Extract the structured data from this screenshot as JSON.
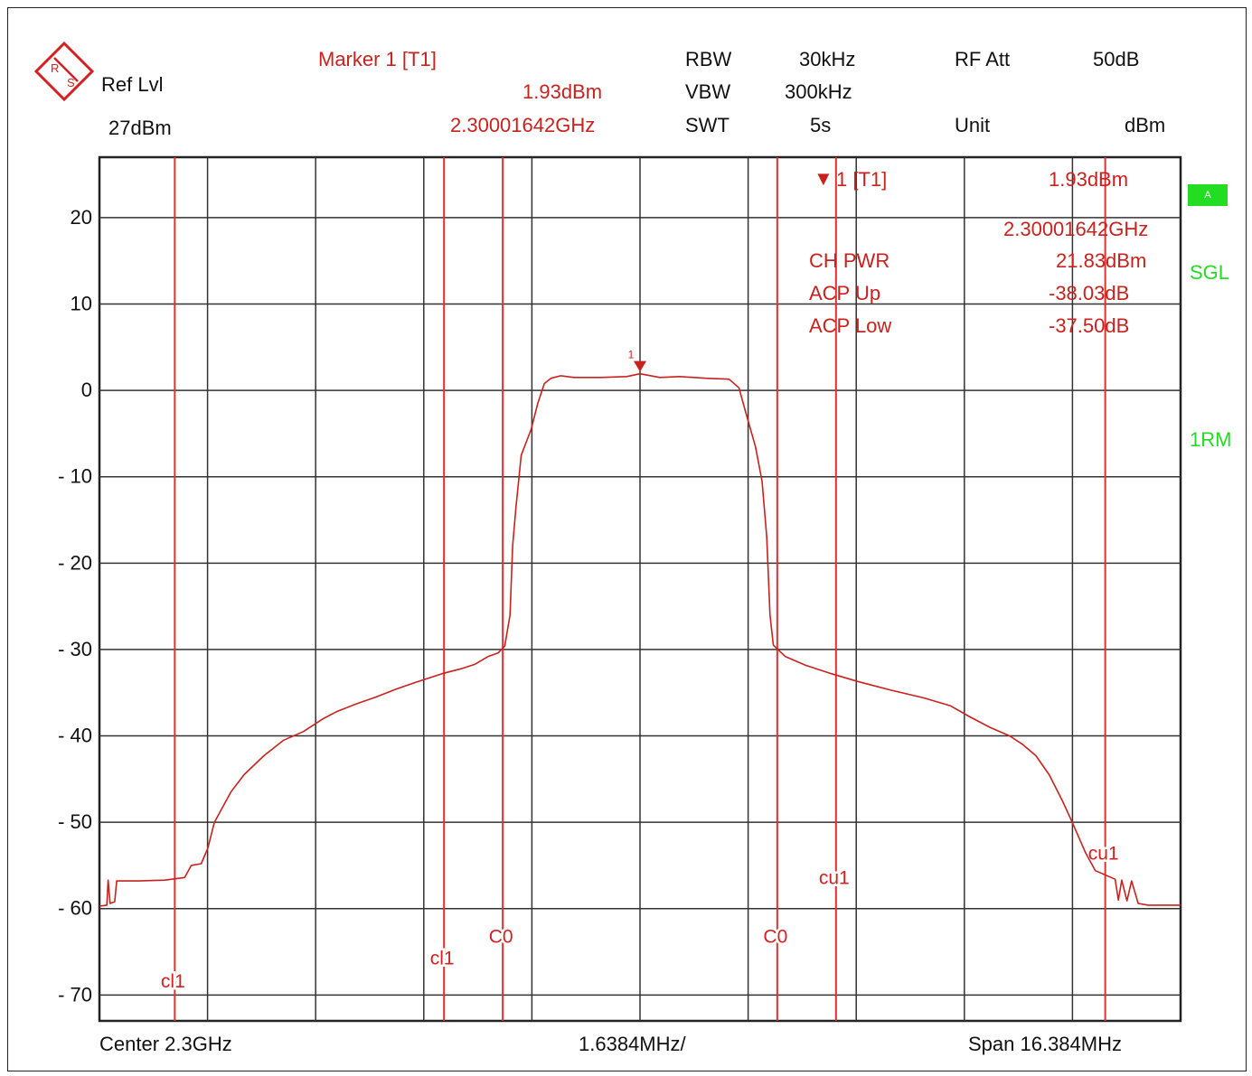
{
  "header": {
    "ref_lvl_label": "Ref Lvl",
    "ref_lvl_value": "27dBm",
    "marker_title": "Marker 1 [T1]",
    "marker_level": "1.93dBm",
    "marker_freq": "2.30001642GHz",
    "rbw_label": "RBW",
    "rbw_value": "30kHz",
    "vbw_label": "VBW",
    "vbw_value": "300kHz",
    "swt_label": "SWT",
    "swt_value": "5s",
    "rfatt_label": "RF Att",
    "rfatt_value": "50dB",
    "unit_label": "Unit",
    "unit_value": "dBm"
  },
  "panel": {
    "marker_label": "1 [T1]",
    "marker_level": "1.93dBm",
    "marker_freq": "2.30001642GHz",
    "ch_pwr_label": "CH PWR",
    "ch_pwr_value": "21.83dBm",
    "acp_up_label": "ACP Up",
    "acp_up_value": "-38.03dB",
    "acp_low_label": "ACP Low",
    "acp_low_value": "-37.50dB"
  },
  "side": {
    "status_a": "A",
    "sgl": "SGL",
    "trace_mode": "1RM"
  },
  "footer": {
    "center": "Center 2.3GHz",
    "div": "1.6384MHz/",
    "span": "Span 16.384MHz"
  },
  "colors": {
    "trace": "#c8221e",
    "marker_lines": "#e03030",
    "grid": "#333333",
    "status_green": "#22dd22"
  },
  "chart_data": {
    "type": "line",
    "title": "",
    "xlabel": "",
    "ylabel": "",
    "x_unit": "MHz offset from center",
    "xlim": [
      -8.192,
      8.192
    ],
    "ylim": [
      -73,
      27
    ],
    "y_ticks": [
      20,
      10,
      0,
      -10,
      -20,
      -30,
      -40,
      -50,
      -60,
      -70
    ],
    "y_tick_labels": [
      "20",
      "10",
      "0",
      "- 10",
      "- 20",
      "- 30",
      "- 40",
      "- 50",
      "- 60",
      "- 70"
    ],
    "grid": true,
    "series": [
      {
        "points": [
          [
            -8.192,
            -59.7
          ],
          [
            -8.08,
            -59.6
          ],
          [
            -8.06,
            -56.7
          ],
          [
            -8.03,
            -59.4
          ],
          [
            -7.96,
            -59.2
          ],
          [
            -7.93,
            -56.8
          ],
          [
            -7.6,
            -56.8
          ],
          [
            -7.2,
            -56.7
          ],
          [
            -6.9,
            -56.4
          ],
          [
            -6.8,
            -55.0
          ],
          [
            -6.65,
            -54.8
          ],
          [
            -6.55,
            -53.0
          ],
          [
            -6.45,
            -50.0
          ],
          [
            -6.2,
            -46.5
          ],
          [
            -6.0,
            -44.5
          ],
          [
            -5.7,
            -42.3
          ],
          [
            -5.4,
            -40.5
          ],
          [
            -5.1,
            -39.5
          ],
          [
            -4.8,
            -38.0
          ],
          [
            -4.6,
            -37.2
          ],
          [
            -4.3,
            -36.3
          ],
          [
            -4.0,
            -35.5
          ],
          [
            -3.7,
            -34.6
          ],
          [
            -3.4,
            -33.8
          ],
          [
            -3.0,
            -32.8
          ],
          [
            -2.7,
            -32.2
          ],
          [
            -2.5,
            -31.7
          ],
          [
            -2.3,
            -30.8
          ],
          [
            -2.15,
            -30.4
          ],
          [
            -2.05,
            -29.6
          ],
          [
            -1.97,
            -26.0
          ],
          [
            -1.93,
            -18.0
          ],
          [
            -1.88,
            -13.5
          ],
          [
            -1.8,
            -7.5
          ],
          [
            -1.65,
            -4.5
          ],
          [
            -1.55,
            -1.5
          ],
          [
            -1.45,
            0.8
          ],
          [
            -1.35,
            1.4
          ],
          [
            -1.2,
            1.7
          ],
          [
            -1.0,
            1.5
          ],
          [
            -0.6,
            1.5
          ],
          [
            -0.2,
            1.6
          ],
          [
            0.0,
            1.93
          ],
          [
            0.3,
            1.5
          ],
          [
            0.6,
            1.6
          ],
          [
            1.0,
            1.4
          ],
          [
            1.35,
            1.3
          ],
          [
            1.5,
            0.3
          ],
          [
            1.6,
            -2.5
          ],
          [
            1.75,
            -6.5
          ],
          [
            1.85,
            -10.5
          ],
          [
            1.92,
            -17.0
          ],
          [
            1.97,
            -26.0
          ],
          [
            2.02,
            -29.5
          ],
          [
            2.2,
            -30.8
          ],
          [
            2.5,
            -31.8
          ],
          [
            2.9,
            -32.8
          ],
          [
            3.3,
            -33.7
          ],
          [
            3.8,
            -34.7
          ],
          [
            4.3,
            -35.6
          ],
          [
            4.7,
            -36.5
          ],
          [
            5.0,
            -37.8
          ],
          [
            5.3,
            -39.0
          ],
          [
            5.6,
            -40.0
          ],
          [
            5.8,
            -41.0
          ],
          [
            6.0,
            -42.3
          ],
          [
            6.2,
            -44.5
          ],
          [
            6.4,
            -47.5
          ],
          [
            6.55,
            -50.0
          ],
          [
            6.75,
            -53.5
          ],
          [
            6.9,
            -55.6
          ],
          [
            7.2,
            -56.6
          ],
          [
            7.25,
            -59.0
          ],
          [
            7.3,
            -56.7
          ],
          [
            7.38,
            -59.1
          ],
          [
            7.45,
            -56.8
          ],
          [
            7.55,
            -59.4
          ],
          [
            7.7,
            -59.6
          ],
          [
            8.192,
            -59.6
          ]
        ]
      }
    ],
    "marker": {
      "label": "1",
      "x": 0.0,
      "y": 1.93
    },
    "vertical_lines": [
      {
        "x": -7.05,
        "label": "cl1",
        "label_y": -68.3
      },
      {
        "x": -2.97,
        "label": "cl1",
        "label_y": -65.6
      },
      {
        "x": -2.08,
        "label": "C0",
        "label_y": -63.1
      },
      {
        "x": 2.08,
        "label": "C0",
        "label_y": -63.1
      },
      {
        "x": 2.97,
        "label": "cu1",
        "label_y": -56.3
      },
      {
        "x": 7.05,
        "label": "cu1",
        "label_y": -53.5
      }
    ]
  }
}
